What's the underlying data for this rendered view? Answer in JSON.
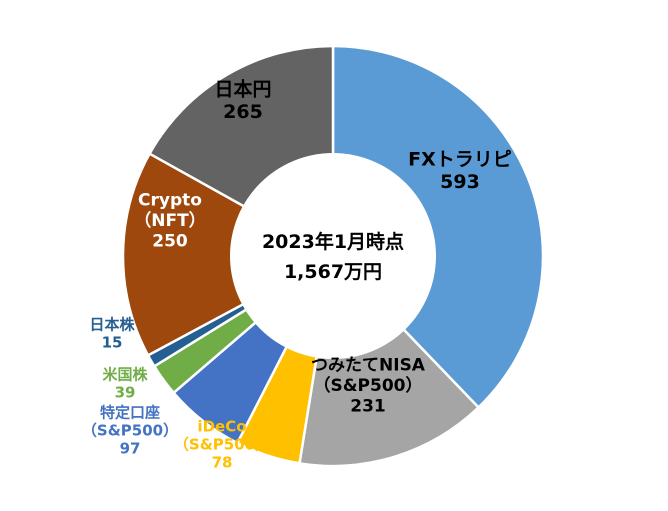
{
  "chart_data": {
    "type": "pie",
    "variant": "donut",
    "center_text": [
      "2023年1月時点",
      "1,567万円"
    ],
    "slices": [
      {
        "name": "FXトラリピ",
        "label_lines": [
          "FXトラリピ",
          "593"
        ],
        "value": 593,
        "color": "#5B9BD5",
        "label_color": "#000000",
        "label_position": "inside"
      },
      {
        "name": "つみたてNISA（S&P500）",
        "label_lines": [
          "つみたてNISA",
          "（S&P500）",
          "231"
        ],
        "value": 231,
        "color": "#A5A5A5",
        "label_color": "#000000",
        "label_position": "inside"
      },
      {
        "name": "iDeCo（S&P500）",
        "label_lines": [
          "iDeCo",
          "（S&P500）",
          "78"
        ],
        "value": 78,
        "color": "#FFC000",
        "label_color": "#FFC000",
        "label_position": "outside"
      },
      {
        "name": "特定口座（S&P500）",
        "label_lines": [
          "特定口座",
          "（S&P500）",
          "97"
        ],
        "value": 97,
        "color": "#4472C4",
        "label_color": "#4472C4",
        "label_position": "outside"
      },
      {
        "name": "米国株",
        "label_lines": [
          "米国株",
          "39"
        ],
        "value": 39,
        "color": "#70AD47",
        "label_color": "#70AD47",
        "label_position": "outside"
      },
      {
        "name": "日本株",
        "label_lines": [
          "日本株",
          "15"
        ],
        "value": 15,
        "color": "#255E91",
        "label_color": "#255E91",
        "label_position": "outside"
      },
      {
        "name": "Crypto（NFT）",
        "label_lines": [
          "Crypto",
          "（NFT）",
          "250"
        ],
        "value": 250,
        "color": "#9E480E",
        "label_color": "#FFFFFF",
        "label_position": "inside"
      },
      {
        "name": "日本円",
        "label_lines": [
          "日本円",
          "265"
        ],
        "value": 265,
        "color": "#636363",
        "label_color": "#000000",
        "label_position": "inside"
      }
    ]
  }
}
